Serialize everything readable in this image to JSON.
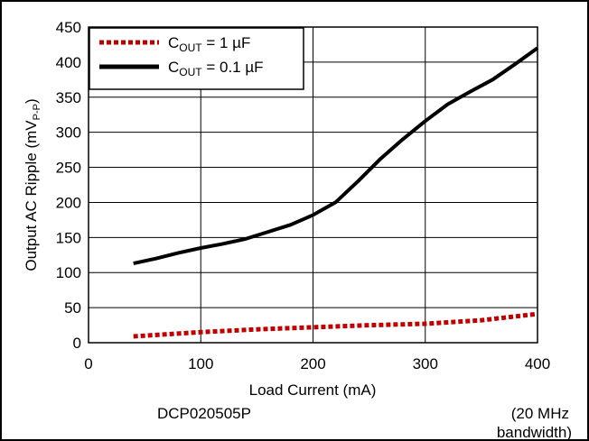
{
  "chart_data": {
    "type": "line",
    "title": "",
    "xlabel": "Load Current (mA)",
    "ylabel": {
      "main": "Output AC Ripple (mV",
      "sub": "P-P",
      "close": ")"
    },
    "xlim": [
      0,
      400
    ],
    "ylim": [
      0,
      450
    ],
    "x_ticks": [
      "0",
      "100",
      "200",
      "300",
      "400"
    ],
    "y_ticks": [
      "0",
      "50",
      "100",
      "150",
      "200",
      "250",
      "300",
      "350",
      "400",
      "450"
    ],
    "grid": true,
    "legend_position": "top-left",
    "series": [
      {
        "name": {
          "prefix": "C",
          "sub": "OUT",
          "suffix": " = 1 µF"
        },
        "color": "#c00000",
        "style": "dashed",
        "x": [
          40,
          100,
          150,
          200,
          250,
          300,
          350,
          400
        ],
        "y": [
          9,
          15,
          19,
          22,
          25,
          27,
          32,
          41
        ]
      },
      {
        "name": {
          "prefix": "C",
          "sub": "OUT",
          "suffix": " = 0.1 µF"
        },
        "color": "#000000",
        "style": "solid",
        "x": [
          40,
          60,
          80,
          100,
          120,
          140,
          160,
          180,
          200,
          220,
          240,
          260,
          280,
          300,
          320,
          340,
          360,
          380,
          400
        ],
        "y": [
          113,
          120,
          128,
          135,
          141,
          148,
          158,
          168,
          182,
          200,
          230,
          262,
          290,
          316,
          340,
          358,
          375,
          397,
          420
        ]
      }
    ],
    "footnotes": {
      "device": "DCP020505P",
      "bandwidth_line1": "(20 MHz",
      "bandwidth_line2": "bandwidth)"
    }
  }
}
